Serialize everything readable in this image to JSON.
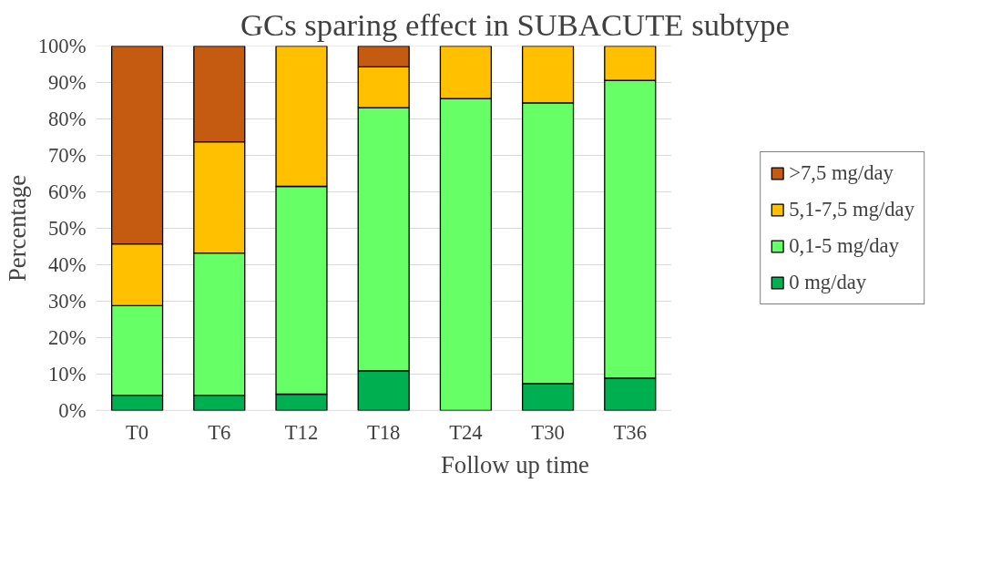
{
  "chart_data": {
    "type": "bar",
    "stacked": true,
    "title": "GCs sparing effect in SUBACUTE subtype",
    "xlabel": "Follow up time",
    "ylabel": "Percentage",
    "categories": [
      "T0",
      "T6",
      "T12",
      "T18",
      "T24",
      "T30",
      "T36"
    ],
    "series": [
      {
        "name": "0 mg/day",
        "color": "#00b050",
        "values": [
          4.2,
          4.2,
          4.5,
          10.9,
          0,
          7.4,
          8.9
        ]
      },
      {
        "name": "0,1-5 mg/day",
        "color": "#66ff66",
        "values": [
          24.6,
          39.0,
          57.0,
          72.2,
          85.6,
          77.0,
          81.7
        ]
      },
      {
        "name": "5,1-7,5 mg/day",
        "color": "#ffc000",
        "values": [
          16.9,
          30.5,
          38.5,
          11.2,
          14.4,
          15.6,
          9.4
        ]
      },
      {
        "name": ">7,5 mg/day",
        "color": "#c55a11",
        "values": [
          54.3,
          26.3,
          0,
          5.7,
          0,
          0,
          0
        ]
      }
    ],
    "ylim": [
      0,
      100
    ],
    "yticks": [
      {
        "value": 0,
        "label": "0%"
      },
      {
        "value": 10,
        "label": "10%"
      },
      {
        "value": 20,
        "label": "20%"
      },
      {
        "value": 30,
        "label": "30%"
      },
      {
        "value": 40,
        "label": "40%"
      },
      {
        "value": 50,
        "label": "50%"
      },
      {
        "value": 60,
        "label": "60%"
      },
      {
        "value": 70,
        "label": "70%"
      },
      {
        "value": 80,
        "label": "80%"
      },
      {
        "value": 90,
        "label": "90%"
      },
      {
        "value": 100,
        "label": "100%"
      }
    ],
    "grid": "y",
    "legend": "right"
  }
}
